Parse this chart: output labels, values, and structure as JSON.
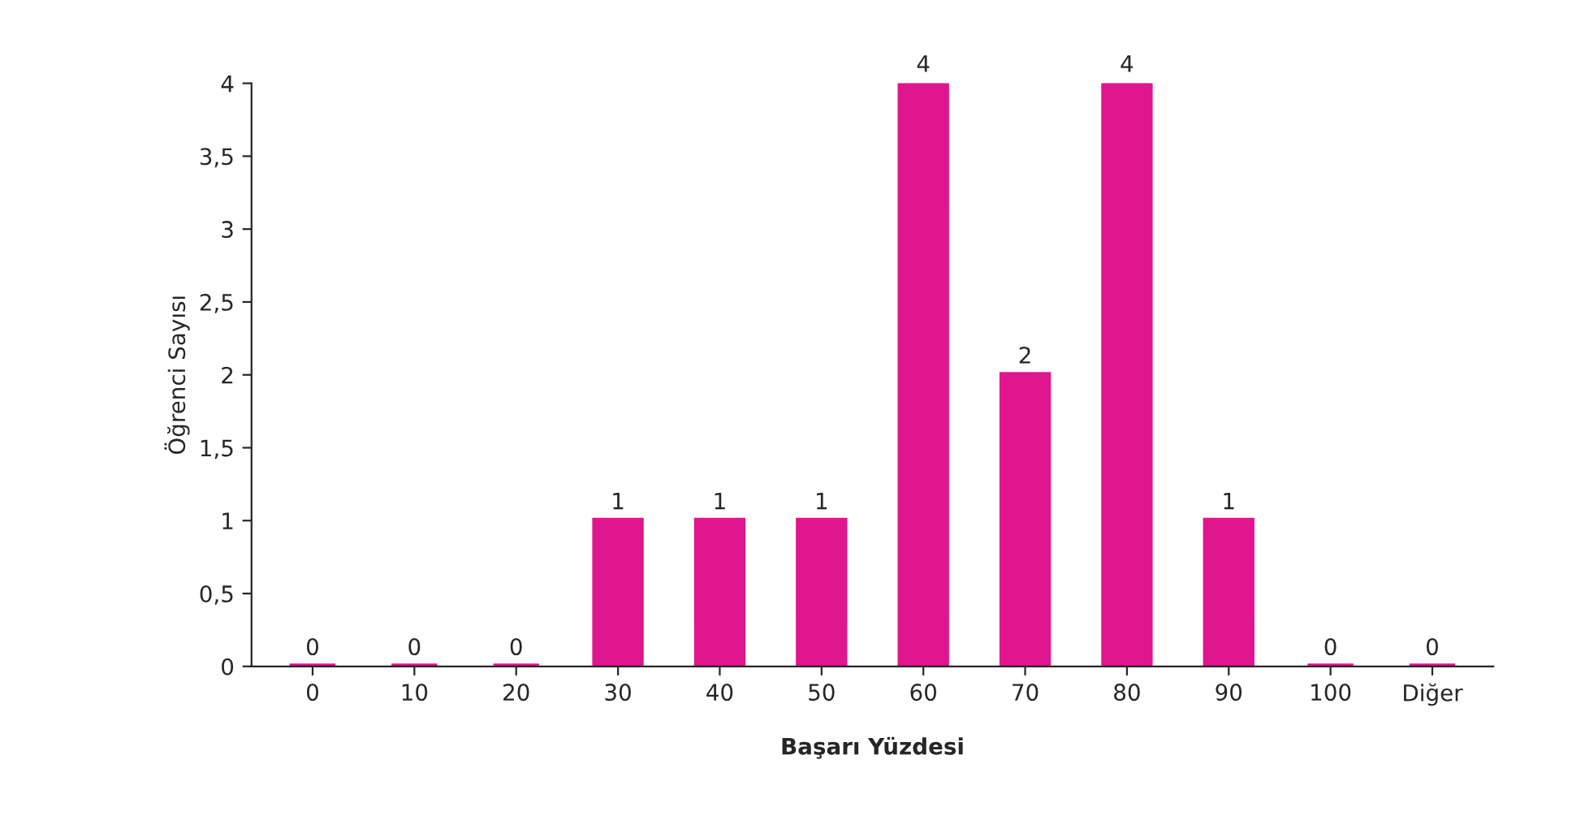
{
  "chart_data": {
    "type": "bar",
    "xlabel": "Başarı Yüzdesi",
    "ylabel": "Öğrenci Sayısı",
    "categories": [
      "0",
      "10",
      "20",
      "30",
      "40",
      "50",
      "60",
      "70",
      "80",
      "90",
      "100",
      "Diğer"
    ],
    "values": [
      0,
      0,
      0,
      1,
      1,
      1,
      4,
      2,
      4,
      1,
      0,
      0
    ],
    "color": "#e0168e",
    "ylim": [
      0,
      4
    ],
    "yticks": [
      0,
      {
        "value": 0.5,
        "label": "0,5"
      },
      1,
      {
        "value": 1.5,
        "label": "1,5"
      },
      2,
      {
        "value": 2.5,
        "label": "2,5"
      },
      3,
      {
        "value": 3.5,
        "label": "3,5"
      },
      4
    ],
    "data_labels": true,
    "grid": false
  }
}
